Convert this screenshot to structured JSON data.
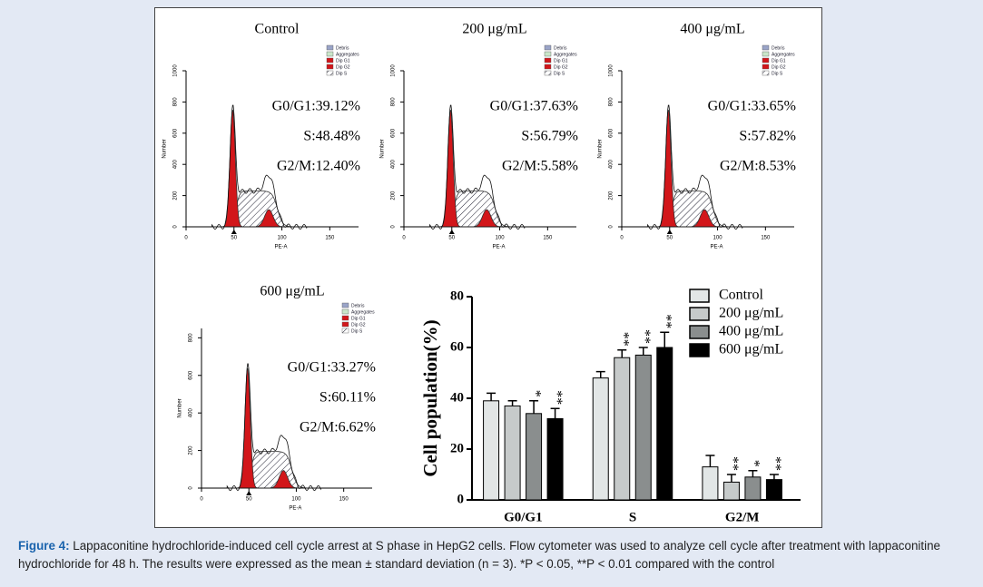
{
  "histograms": [
    {
      "title": "Control",
      "stats": [
        "G0/G1:39.12%",
        "S:48.48%",
        "G2/M:12.40%"
      ],
      "legend": [
        "Debris",
        "Aggregates",
        "Dip G1",
        "Dip G2",
        "Dip S"
      ],
      "ylabel": "Number",
      "xlabel": "PE-A",
      "xlim": [
        0,
        180
      ],
      "xticks": [
        0,
        50,
        100,
        150
      ],
      "ylim": [
        0,
        1000
      ],
      "yticks": [
        0,
        200,
        400,
        600,
        800,
        1000
      ]
    },
    {
      "title": "200 μg/mL",
      "stats": [
        "G0/G1:37.63%",
        "S:56.79%",
        "G2/M:5.58%"
      ],
      "legend": [
        "Debris",
        "Aggregates",
        "Dip G1",
        "Dip G2",
        "Dip S"
      ],
      "ylabel": "Number",
      "xlabel": "PE-A",
      "xlim": [
        0,
        180
      ],
      "xticks": [
        0,
        50,
        100,
        150
      ],
      "ylim": [
        0,
        1000
      ],
      "yticks": [
        0,
        200,
        400,
        600,
        800,
        1000
      ]
    },
    {
      "title": "400 μg/mL",
      "stats": [
        "G0/G1:33.65%",
        "S:57.82%",
        "G2/M:8.53%"
      ],
      "legend": [
        "Debris",
        "Aggregates",
        "Dip G1",
        "Dip G2",
        "Dip S"
      ],
      "ylabel": "Number",
      "xlabel": "PE-A",
      "xlim": [
        0,
        180
      ],
      "xticks": [
        0,
        50,
        100,
        150
      ],
      "ylim": [
        0,
        1000
      ],
      "yticks": [
        0,
        200,
        400,
        600,
        800,
        1000
      ]
    },
    {
      "title": "600 μg/mL",
      "stats": [
        "G0/G1:33.27%",
        "S:60.11%",
        "G2/M:6.62%"
      ],
      "legend": [
        "Debris",
        "Aggregates",
        "Dip G1",
        "Dip G2",
        "Dip S"
      ],
      "ylabel": "Number",
      "xlabel": "PE-A",
      "xlim": [
        0,
        180
      ],
      "xticks": [
        0,
        50,
        100,
        150
      ],
      "ylim": [
        0,
        850
      ],
      "yticks": [
        0,
        200,
        400,
        600,
        800
      ]
    }
  ],
  "chart_data": {
    "type": "bar",
    "ylabel": "Cell population(%)",
    "categories": [
      "G0/G1",
      "S",
      "G2/M"
    ],
    "ylim": [
      0,
      80
    ],
    "yticks": [
      0,
      20,
      40,
      60,
      80
    ],
    "series": [
      {
        "name": "Control",
        "color": "#e2e6e6",
        "values": [
          39,
          48,
          13
        ],
        "errors": [
          3,
          2.5,
          4.5
        ],
        "significance": [
          null,
          null,
          null
        ]
      },
      {
        "name": "200 μg/mL",
        "color": "#c6caca",
        "values": [
          37,
          56,
          7
        ],
        "errors": [
          2,
          3,
          3
        ],
        "significance": [
          null,
          "**",
          "**"
        ]
      },
      {
        "name": "400 μg/mL",
        "color": "#8a8e8e",
        "values": [
          34,
          57,
          9
        ],
        "errors": [
          5,
          3,
          2.5
        ],
        "significance": [
          "*",
          "**",
          "*"
        ]
      },
      {
        "name": "600 μg/mL",
        "color": "#000000",
        "values": [
          32,
          60,
          8
        ],
        "errors": [
          4,
          6,
          2
        ],
        "significance": [
          "**",
          "**",
          "**"
        ]
      }
    ]
  },
  "caption": {
    "label": "Figure 4:",
    "text": "Lappaconitine hydrochloride-induced cell cycle arrest at S phase in HepG2 cells. Flow cytometer was used to analyze cell cycle after treatment with lappaconitine hydrochloride for 48 h. The results were expressed as the mean ± standard deviation (n = 3). *P < 0.05, **P < 0.01 compared with the control"
  }
}
